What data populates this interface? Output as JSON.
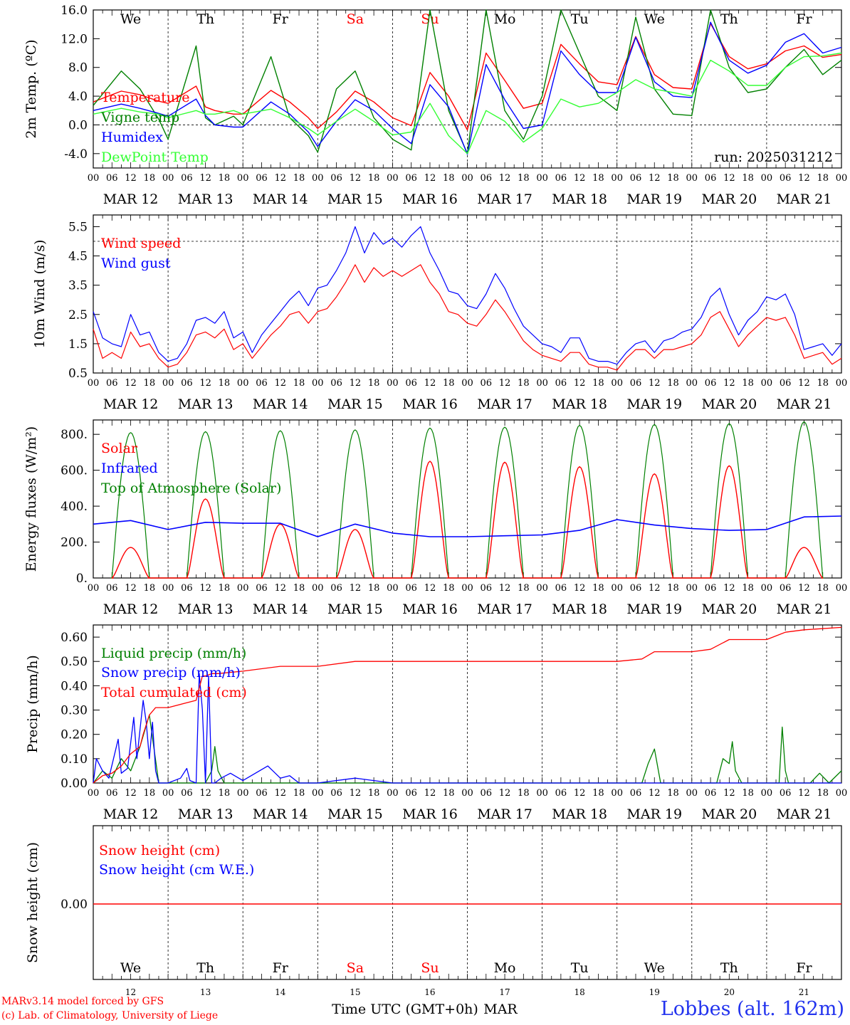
{
  "chart_data": [
    {
      "type": "line",
      "ylabel": "2m Temp. (ºC)",
      "ylim": [
        -6,
        16
      ],
      "yticks": [
        "-4.0",
        "0.0",
        "4.0",
        "8.0",
        "12.0",
        "16.0"
      ],
      "day_labels": [
        "We",
        "Th",
        "Fr",
        "Sa",
        "Su",
        "Mo",
        "Tu",
        "We",
        "Th",
        "Fr"
      ],
      "weekend_color": "#ff0000",
      "run_label": "run: 2025031212",
      "date_labels": [
        "MAR 12",
        "MAR 13",
        "MAR 14",
        "MAR 15",
        "MAR 16",
        "MAR 17",
        "MAR 18",
        "MAR 19",
        "MAR 20",
        "MAR 21"
      ],
      "hour_labels": [
        "00",
        "06",
        "12",
        "18"
      ],
      "x_hours": [
        0,
        9,
        15,
        21,
        24,
        33,
        36,
        39,
        45,
        48,
        57,
        63,
        69,
        72,
        78,
        84,
        90,
        96,
        102,
        108,
        114,
        120,
        126,
        132,
        138,
        144,
        150,
        156,
        162,
        168,
        174,
        180,
        186,
        192,
        198,
        204,
        210,
        216,
        222,
        228,
        234,
        240
      ],
      "series": [
        {
          "name": "Temperature",
          "color": "#ff0000",
          "values": [
            3.2,
            4.7,
            4.2,
            3.3,
            3.0,
            5.4,
            2.5,
            2.0,
            1.5,
            1.5,
            4.8,
            3.2,
            1.0,
            -0.5,
            1.8,
            4.7,
            3.2,
            1.0,
            -0.1,
            7.3,
            4.0,
            -0.7,
            10.0,
            6.2,
            2.3,
            3.0,
            11.2,
            8.5,
            6.0,
            5.6,
            12.3,
            7.0,
            5.2,
            5.0,
            14.1,
            9.5,
            7.8,
            8.5,
            10.3,
            11.0,
            9.4,
            9.8
          ]
        },
        {
          "name": "Vigne temp",
          "color": "#008000",
          "values": [
            2.7,
            7.5,
            5.0,
            0.8,
            -2.0,
            11.0,
            1.0,
            0.0,
            1.2,
            0.0,
            9.5,
            1.0,
            -1.5,
            -3.8,
            5.0,
            7.5,
            1.0,
            -2.0,
            -3.5,
            16.0,
            2.0,
            -4.0,
            16.0,
            2.0,
            -2.0,
            4.0,
            16.0,
            10.0,
            4.0,
            2.0,
            15.0,
            5.0,
            1.5,
            1.3,
            16.0,
            8.0,
            4.5,
            5.0,
            8.0,
            10.5,
            7.0,
            9.0
          ]
        },
        {
          "name": "Humidex",
          "color": "#0000ff",
          "values": [
            2.0,
            2.9,
            2.3,
            1.6,
            1.2,
            3.6,
            1.3,
            0.0,
            -0.3,
            -0.3,
            3.2,
            1.5,
            -1.0,
            -3.0,
            0.5,
            3.5,
            2.0,
            -0.5,
            -2.6,
            5.6,
            2.5,
            -4.1,
            8.4,
            3.5,
            -0.5,
            0.0,
            10.3,
            7.0,
            4.5,
            4.5,
            12.2,
            6.0,
            4.0,
            3.8,
            14.3,
            9.0,
            7.2,
            8.3,
            11.5,
            12.7,
            10.0,
            10.8
          ]
        },
        {
          "name": "DewPoint Temp",
          "color": "#33ff33",
          "values": [
            1.5,
            2.3,
            1.8,
            1.5,
            1.0,
            2.0,
            1.5,
            1.5,
            2.0,
            1.5,
            2.2,
            1.0,
            -0.5,
            -1.4,
            0.5,
            2.2,
            0.5,
            -1.4,
            -1.0,
            3.0,
            -1.5,
            -4.0,
            2.0,
            0.5,
            -2.4,
            -0.5,
            3.6,
            2.5,
            3.0,
            4.5,
            6.3,
            5.0,
            4.5,
            4.0,
            9.0,
            7.5,
            5.5,
            5.5,
            8.0,
            9.5,
            9.6,
            10.0
          ]
        }
      ]
    },
    {
      "type": "line",
      "ylabel": "10m Wind (m/s)",
      "ylim": [
        0.5,
        5.9
      ],
      "yticks": [
        "0.5",
        "1.5",
        "2.5",
        "3.5",
        "4.5",
        "5.5"
      ],
      "date_labels": [
        "MAR 12",
        "MAR 13",
        "MAR 14",
        "MAR 15",
        "MAR 16",
        "MAR 17",
        "MAR 18",
        "MAR 19",
        "MAR 20",
        "MAR 21"
      ],
      "hour_labels": [
        "00",
        "06",
        "12",
        "18"
      ],
      "x_hours": [
        0,
        3,
        6,
        9,
        12,
        15,
        18,
        21,
        24,
        27,
        30,
        33,
        36,
        39,
        42,
        45,
        48,
        51,
        54,
        57,
        60,
        63,
        66,
        69,
        72,
        75,
        78,
        81,
        84,
        87,
        90,
        93,
        96,
        99,
        102,
        105,
        108,
        111,
        114,
        117,
        120,
        123,
        126,
        129,
        132,
        135,
        138,
        141,
        144,
        147,
        150,
        153,
        156,
        159,
        162,
        165,
        168,
        171,
        174,
        177,
        180,
        183,
        186,
        189,
        192,
        195,
        198,
        201,
        204,
        207,
        210,
        213,
        216,
        219,
        222,
        225,
        228,
        231,
        234,
        237,
        240
      ],
      "series": [
        {
          "name": "Wind speed",
          "color": "#ff0000",
          "values": [
            2.0,
            1.0,
            1.2,
            1.0,
            1.9,
            1.4,
            1.5,
            1.0,
            0.7,
            0.8,
            1.2,
            1.8,
            1.9,
            1.7,
            2.0,
            1.3,
            1.5,
            1.0,
            1.4,
            1.8,
            2.1,
            2.5,
            2.6,
            2.2,
            2.6,
            2.7,
            3.1,
            3.6,
            4.2,
            3.6,
            4.1,
            3.8,
            4.0,
            3.8,
            4.0,
            4.2,
            3.6,
            3.2,
            2.6,
            2.5,
            2.2,
            2.1,
            2.5,
            3.0,
            2.6,
            2.1,
            1.6,
            1.3,
            1.1,
            1.0,
            0.9,
            1.2,
            1.2,
            0.8,
            0.7,
            0.7,
            0.6,
            1.0,
            1.3,
            1.3,
            1.0,
            1.3,
            1.3,
            1.4,
            1.5,
            1.8,
            2.4,
            2.6,
            2.0,
            1.4,
            1.8,
            2.1,
            2.4,
            2.3,
            2.4,
            1.8,
            1.0,
            1.1,
            1.2,
            0.8,
            1.0
          ]
        },
        {
          "name": "Wind gust",
          "color": "#0000ff",
          "values": [
            2.6,
            1.7,
            1.5,
            1.4,
            2.5,
            1.8,
            1.9,
            1.2,
            0.9,
            1.0,
            1.5,
            2.3,
            2.4,
            2.2,
            2.6,
            1.7,
            1.9,
            1.2,
            1.8,
            2.2,
            2.6,
            3.0,
            3.3,
            2.8,
            3.4,
            3.5,
            4.0,
            4.6,
            5.5,
            4.6,
            5.3,
            4.9,
            5.1,
            4.8,
            5.2,
            5.5,
            4.6,
            4.0,
            3.3,
            3.2,
            2.8,
            2.7,
            3.2,
            3.9,
            3.4,
            2.7,
            2.1,
            1.8,
            1.5,
            1.4,
            1.2,
            1.7,
            1.7,
            1.0,
            0.9,
            0.9,
            0.8,
            1.2,
            1.5,
            1.6,
            1.2,
            1.6,
            1.7,
            1.9,
            2.0,
            2.4,
            3.1,
            3.4,
            2.5,
            1.8,
            2.3,
            2.6,
            3.1,
            3.0,
            3.2,
            2.5,
            1.3,
            1.4,
            1.5,
            1.1,
            1.5
          ]
        }
      ],
      "reference_line": 5.0
    },
    {
      "type": "line",
      "ylabel": "Energy fluxes (W/m²)",
      "ylim": [
        0,
        880
      ],
      "yticks": [
        "0.",
        "200.",
        "400.",
        "600.",
        "800."
      ],
      "date_labels": [
        "MAR 12",
        "MAR 13",
        "MAR 14",
        "MAR 15",
        "MAR 16",
        "MAR 17",
        "MAR 18",
        "MAR 19",
        "MAR 20",
        "MAR 21"
      ],
      "hour_labels": [
        "00",
        "06",
        "12",
        "18"
      ],
      "solar_peaks": [
        170,
        440,
        300,
        270,
        650,
        645,
        620,
        580,
        625,
        170
      ],
      "toa_peaks": [
        810,
        815,
        820,
        825,
        835,
        840,
        850,
        855,
        860,
        870
      ],
      "infrared": {
        "x_hours": [
          0,
          12,
          24,
          36,
          48,
          60,
          72,
          84,
          96,
          108,
          120,
          132,
          144,
          156,
          168,
          180,
          192,
          204,
          216,
          228,
          240
        ],
        "values": [
          300,
          320,
          270,
          310,
          305,
          305,
          230,
          300,
          250,
          230,
          230,
          235,
          240,
          265,
          325,
          295,
          275,
          265,
          270,
          340,
          345
        ]
      },
      "series": [
        {
          "name": "Solar",
          "color": "#ff0000"
        },
        {
          "name": "Infrared",
          "color": "#0000ff"
        },
        {
          "name": "Top of Atmosphere (Solar)",
          "color": "#008000"
        }
      ]
    },
    {
      "type": "line",
      "ylabel": "Precip (mm/h)",
      "ylim": [
        0,
        0.65
      ],
      "yticks": [
        "0.00",
        "0.10",
        "0.20",
        "0.30",
        "0.40",
        "0.50",
        "0.60"
      ],
      "date_labels": [
        "MAR 12",
        "MAR 13",
        "MAR 14",
        "MAR 15",
        "MAR 16",
        "MAR 17",
        "MAR 18",
        "MAR 19",
        "MAR 20",
        "MAR 21"
      ],
      "hour_labels": [
        "00",
        "06",
        "12",
        "18"
      ],
      "series": [
        {
          "name": "Liquid precip (mm/h)",
          "color": "#008000",
          "x_hours": [
            0,
            3,
            6,
            9,
            12,
            15,
            18,
            21,
            24,
            30,
            36,
            38,
            39,
            40,
            42,
            45,
            48,
            176,
            178,
            180,
            182,
            200,
            202,
            204,
            205,
            206,
            208,
            220,
            221,
            222,
            223,
            224,
            230,
            233,
            236,
            240
          ],
          "values": [
            0.0,
            0.05,
            0.02,
            0.1,
            0.05,
            0.15,
            0.28,
            0.0,
            0.0,
            0.0,
            0.0,
            0.05,
            0.15,
            0.05,
            0.0,
            0.0,
            0.0,
            0.0,
            0.08,
            0.14,
            0.0,
            0.0,
            0.1,
            0.08,
            0.17,
            0.05,
            0.0,
            0.0,
            0.23,
            0.05,
            0.0,
            0.0,
            0.0,
            0.04,
            0.0,
            0.05
          ]
        },
        {
          "name": "Snow precip (mm/h)",
          "color": "#0000ff",
          "x_hours": [
            0,
            1,
            3,
            5,
            8,
            9,
            11,
            13,
            14,
            16,
            17,
            18,
            19,
            20,
            21,
            22,
            24,
            28,
            30,
            31,
            33,
            34,
            35,
            36,
            37,
            38,
            39,
            41,
            44,
            48,
            52,
            56,
            60,
            63,
            66,
            72,
            84,
            90,
            96,
            240
          ],
          "values": [
            0.0,
            0.1,
            0.05,
            0.02,
            0.18,
            0.04,
            0.06,
            0.27,
            0.1,
            0.34,
            0.25,
            0.1,
            0.25,
            0.05,
            0.0,
            0.0,
            0.0,
            0.02,
            0.06,
            0.01,
            0.0,
            0.45,
            0.3,
            0.0,
            0.44,
            0.0,
            0.0,
            0.02,
            0.04,
            0.01,
            0.04,
            0.07,
            0.02,
            0.03,
            0.0,
            0.0,
            0.02,
            0.01,
            0.0,
            0.0
          ]
        },
        {
          "name": "Total cumulated (cm)",
          "color": "#ff0000",
          "x_hours": [
            0,
            3,
            6,
            9,
            12,
            15,
            16,
            18,
            20,
            24,
            30,
            33,
            35,
            36,
            38,
            40,
            48,
            60,
            72,
            84,
            96,
            168,
            176,
            180,
            192,
            198,
            204,
            216,
            222,
            228,
            240
          ],
          "values": [
            0.0,
            0.03,
            0.04,
            0.07,
            0.12,
            0.15,
            0.2,
            0.28,
            0.31,
            0.31,
            0.33,
            0.34,
            0.44,
            0.44,
            0.45,
            0.45,
            0.46,
            0.48,
            0.48,
            0.5,
            0.5,
            0.5,
            0.51,
            0.54,
            0.54,
            0.55,
            0.59,
            0.59,
            0.62,
            0.63,
            0.64
          ]
        }
      ]
    },
    {
      "type": "line",
      "ylabel": "Snow height (cm)",
      "ytick": "0.00",
      "series": [
        {
          "name": "Snow height (cm)",
          "color": "#ff0000",
          "values": [
            0.0,
            0.0
          ]
        },
        {
          "name": "Snow height (cm W.E.)",
          "color": "#0000ff",
          "values": [
            0.0,
            0.0
          ]
        }
      ],
      "day_labels": [
        "We",
        "Th",
        "Fr",
        "Sa",
        "Su",
        "Mo",
        "Tu",
        "We",
        "Th",
        "Fr"
      ],
      "day_numbers": [
        "12",
        "13",
        "14",
        "15",
        "16",
        "17",
        "18",
        "19",
        "20",
        "21"
      ],
      "xlabel": "Time UTC (GMT+0h)",
      "month": "MAR"
    }
  ],
  "footer": {
    "credit_line1": "MARv3.14 model forced by GFS",
    "credit_line2": "(c) Lab. of Climatology, University of Liege",
    "station": "Lobbes (alt. 162m)"
  }
}
